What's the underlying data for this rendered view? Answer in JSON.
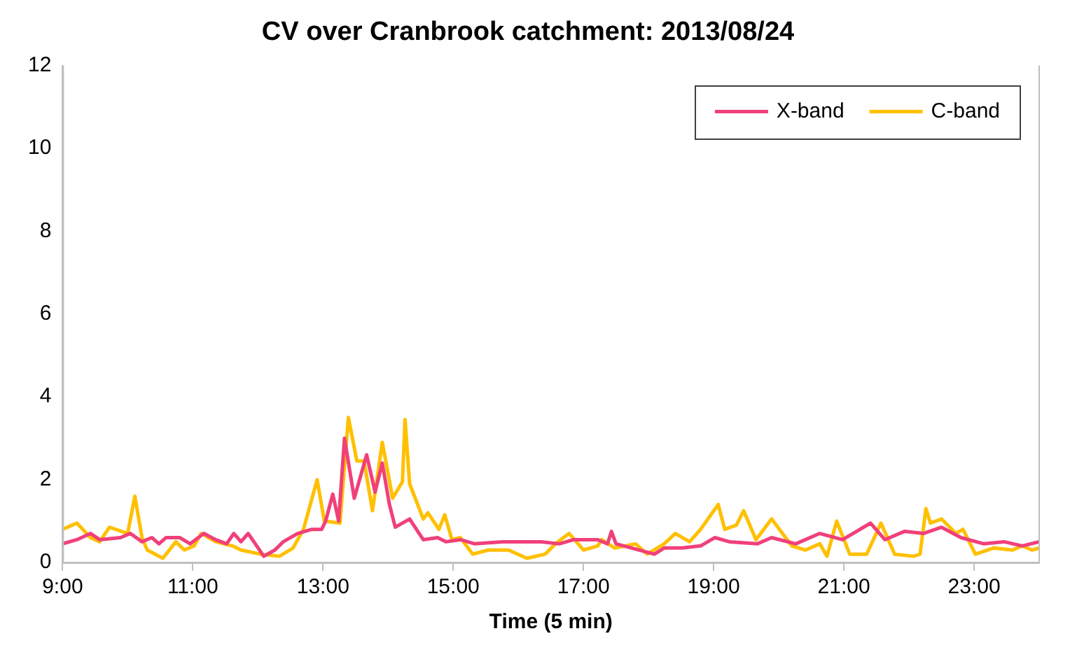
{
  "chart_data": {
    "type": "line",
    "title": "CV over Cranbrook catchment: 2013/08/24",
    "xlabel": "Time (5 min)",
    "xlim": [
      9,
      24
    ],
    "xticks": [
      {
        "value": 9,
        "label": "9:00"
      },
      {
        "value": 11,
        "label": "11:00"
      },
      {
        "value": 13,
        "label": "13:00"
      },
      {
        "value": 15,
        "label": "15:00"
      },
      {
        "value": 17,
        "label": "17:00"
      },
      {
        "value": 19,
        "label": "19:00"
      },
      {
        "value": 21,
        "label": "21:00"
      },
      {
        "value": 23,
        "label": "23:00"
      }
    ],
    "ylim": [
      0,
      12
    ],
    "yticks": [
      0,
      2,
      4,
      6,
      8,
      10,
      12
    ],
    "grid": false,
    "legend": "top right",
    "marker": "none",
    "line_style": "solid",
    "series": [
      {
        "name": "X-band",
        "color": "#f0407a",
        "x": [
          9.0,
          9.22,
          9.43,
          9.57,
          9.89,
          10.04,
          10.22,
          10.37,
          10.48,
          10.59,
          10.8,
          10.96,
          11.17,
          11.35,
          11.52,
          11.63,
          11.74,
          11.85,
          11.96,
          12.09,
          12.26,
          12.39,
          12.61,
          12.83,
          12.98,
          13.04,
          13.15,
          13.24,
          13.33,
          13.48,
          13.67,
          13.8,
          13.91,
          14.02,
          14.11,
          14.33,
          14.54,
          14.76,
          14.89,
          15.11,
          15.33,
          15.76,
          16.35,
          16.63,
          16.85,
          17.22,
          17.37,
          17.43,
          17.5,
          18.09,
          18.24,
          18.52,
          18.8,
          19.02,
          19.24,
          19.67,
          19.89,
          20.26,
          20.63,
          20.98,
          21.41,
          21.63,
          21.93,
          22.22,
          22.5,
          22.8,
          23.15,
          23.46,
          23.74,
          24.0
        ],
        "values": [
          0.45,
          0.55,
          0.7,
          0.55,
          0.6,
          0.7,
          0.5,
          0.6,
          0.45,
          0.6,
          0.6,
          0.45,
          0.7,
          0.55,
          0.45,
          0.7,
          0.5,
          0.7,
          0.45,
          0.15,
          0.3,
          0.5,
          0.7,
          0.8,
          0.8,
          1.0,
          1.65,
          1.0,
          3.0,
          1.55,
          2.6,
          1.7,
          2.4,
          1.4,
          0.85,
          1.05,
          0.55,
          0.6,
          0.5,
          0.55,
          0.45,
          0.5,
          0.5,
          0.45,
          0.55,
          0.55,
          0.45,
          0.75,
          0.45,
          0.2,
          0.35,
          0.35,
          0.4,
          0.6,
          0.5,
          0.45,
          0.6,
          0.45,
          0.7,
          0.55,
          0.95,
          0.55,
          0.75,
          0.7,
          0.85,
          0.6,
          0.45,
          0.5,
          0.4,
          0.5
        ]
      },
      {
        "name": "C-band",
        "color": "#ffc000",
        "x": [
          9.0,
          9.22,
          9.43,
          9.57,
          9.72,
          10.0,
          10.11,
          10.22,
          10.3,
          10.54,
          10.74,
          10.87,
          11.02,
          11.13,
          11.35,
          11.61,
          11.74,
          12.04,
          12.33,
          12.54,
          12.7,
          12.91,
          13.02,
          13.26,
          13.39,
          13.52,
          13.63,
          13.76,
          13.91,
          14.07,
          14.22,
          14.26,
          14.33,
          14.54,
          14.61,
          14.78,
          14.87,
          14.98,
          15.11,
          15.3,
          15.54,
          15.85,
          16.13,
          16.41,
          16.57,
          16.78,
          17.0,
          17.22,
          17.28,
          17.48,
          17.65,
          17.8,
          17.98,
          18.24,
          18.41,
          18.63,
          18.8,
          19.07,
          19.17,
          19.35,
          19.46,
          19.65,
          19.89,
          20.2,
          20.41,
          20.63,
          20.74,
          20.89,
          21.09,
          21.35,
          21.57,
          21.78,
          22.07,
          22.17,
          22.26,
          22.33,
          22.5,
          22.72,
          22.83,
          23.02,
          23.3,
          23.59,
          23.74,
          23.89,
          24.0
        ],
        "values": [
          0.8,
          0.95,
          0.6,
          0.5,
          0.85,
          0.7,
          1.6,
          0.6,
          0.3,
          0.1,
          0.5,
          0.3,
          0.4,
          0.7,
          0.5,
          0.4,
          0.3,
          0.2,
          0.15,
          0.35,
          0.8,
          2.0,
          1.0,
          0.95,
          3.5,
          2.45,
          2.45,
          1.25,
          2.9,
          1.55,
          1.95,
          3.45,
          1.9,
          1.05,
          1.2,
          0.8,
          1.15,
          0.55,
          0.6,
          0.2,
          0.3,
          0.3,
          0.1,
          0.2,
          0.45,
          0.7,
          0.3,
          0.4,
          0.55,
          0.35,
          0.4,
          0.45,
          0.2,
          0.45,
          0.7,
          0.5,
          0.8,
          1.4,
          0.8,
          0.9,
          1.25,
          0.55,
          1.05,
          0.4,
          0.3,
          0.45,
          0.15,
          1.0,
          0.2,
          0.2,
          0.95,
          0.2,
          0.15,
          0.2,
          1.3,
          0.95,
          1.05,
          0.7,
          0.8,
          0.2,
          0.35,
          0.3,
          0.4,
          0.3,
          0.35
        ]
      }
    ]
  }
}
